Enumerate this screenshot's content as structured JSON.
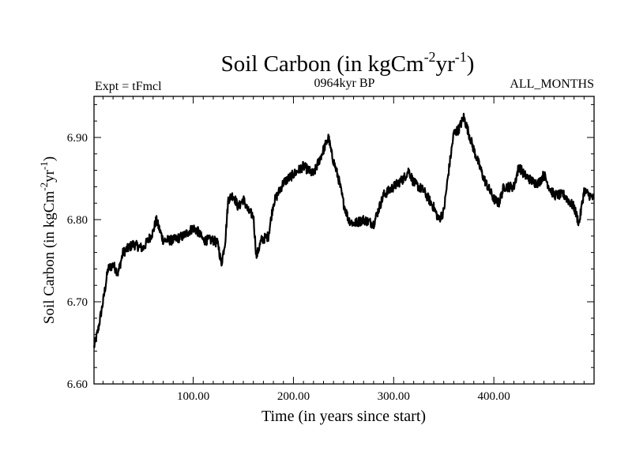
{
  "chart_data": {
    "type": "line",
    "title_main": "Soil Carbon (in kgCm",
    "title_sup1": "-2",
    "title_mid": "yr",
    "title_sup2": "-1",
    "title_end": ")",
    "subtitle_left": "Expt = tFmcl",
    "subtitle_center": "0964kyr BP",
    "subtitle_right": "ALL_MONTHS",
    "xlabel": "Time (in years since start)",
    "ylabel_main": "Soil Carbon (in kgCm",
    "ylabel_sup1": "-2",
    "ylabel_mid": "yr",
    "ylabel_sup2": "-1",
    "ylabel_end": ")",
    "xlim": [
      1,
      500
    ],
    "ylim": [
      6.6,
      6.95
    ],
    "xticks": [
      100,
      200,
      300,
      400
    ],
    "xtick_labels": [
      "100.00",
      "200.00",
      "300.00",
      "400.00"
    ],
    "yticks": [
      6.6,
      6.7,
      6.8,
      6.9
    ],
    "ytick_labels": [
      "6.60",
      "6.70",
      "6.80",
      "6.90"
    ],
    "grid": false,
    "line_color": "#000000",
    "series": [
      {
        "name": "Soil Carbon",
        "x": [
          1,
          5,
          10,
          15,
          20,
          25,
          30,
          40,
          50,
          60,
          63,
          70,
          80,
          90,
          100,
          105,
          110,
          120,
          125,
          128,
          132,
          135,
          140,
          145,
          150,
          155,
          160,
          163,
          168,
          175,
          180,
          190,
          200,
          210,
          220,
          225,
          230,
          235,
          238,
          245,
          250,
          255,
          260,
          270,
          280,
          290,
          300,
          310,
          315,
          320,
          330,
          340,
          345,
          350,
          355,
          360,
          365,
          370,
          375,
          380,
          390,
          400,
          405,
          410,
          420,
          425,
          430,
          435,
          440,
          445,
          450,
          455,
          460,
          470,
          480,
          485,
          490,
          495,
          500
        ],
        "y": [
          6.645,
          6.665,
          6.7,
          6.74,
          6.745,
          6.735,
          6.76,
          6.77,
          6.765,
          6.785,
          6.8,
          6.775,
          6.775,
          6.78,
          6.79,
          6.785,
          6.775,
          6.775,
          6.77,
          6.745,
          6.775,
          6.825,
          6.83,
          6.815,
          6.825,
          6.81,
          6.805,
          6.755,
          6.775,
          6.78,
          6.82,
          6.845,
          6.855,
          6.865,
          6.855,
          6.87,
          6.885,
          6.9,
          6.88,
          6.85,
          6.82,
          6.8,
          6.795,
          6.8,
          6.795,
          6.83,
          6.84,
          6.85,
          6.86,
          6.845,
          6.835,
          6.815,
          6.8,
          6.81,
          6.86,
          6.905,
          6.91,
          6.925,
          6.905,
          6.885,
          6.85,
          6.825,
          6.82,
          6.84,
          6.84,
          6.865,
          6.855,
          6.85,
          6.845,
          6.845,
          6.855,
          6.84,
          6.83,
          6.83,
          6.815,
          6.795,
          6.835,
          6.83,
          6.825
        ]
      }
    ]
  }
}
